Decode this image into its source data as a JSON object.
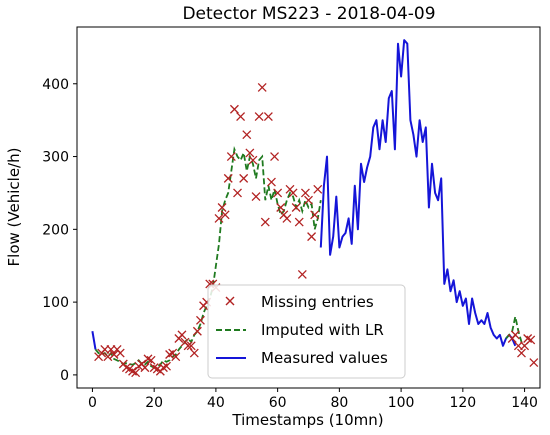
{
  "chart_data": {
    "type": "line",
    "title": "Detector MS223 - 2018-04-09",
    "xlabel": "Timestamps (10mn)",
    "ylabel": "Flow (Vehicle/h)",
    "xlim": [
      -5,
      145
    ],
    "ylim": [
      -18,
      478
    ],
    "xticks": [
      0,
      20,
      40,
      60,
      80,
      100,
      120,
      140
    ],
    "yticks": [
      0,
      100,
      200,
      300,
      400
    ],
    "legend_position": "lower-center",
    "colors": {
      "missing": "#b22222",
      "imputed": "#1f7a1f",
      "measured": "#1515d8"
    },
    "series": [
      {
        "name": "Missing entries",
        "kind": "scatter",
        "marker": "x",
        "points": [
          [
            2,
            25
          ],
          [
            3,
            30
          ],
          [
            4,
            35
          ],
          [
            5,
            25
          ],
          [
            6,
            35
          ],
          [
            7,
            28
          ],
          [
            8,
            35
          ],
          [
            9,
            30
          ],
          [
            10,
            15
          ],
          [
            11,
            10
          ],
          [
            12,
            8
          ],
          [
            13,
            5
          ],
          [
            14,
            3
          ],
          [
            15,
            12
          ],
          [
            16,
            15
          ],
          [
            17,
            10
          ],
          [
            18,
            22
          ],
          [
            19,
            20
          ],
          [
            20,
            10
          ],
          [
            21,
            8
          ],
          [
            22,
            5
          ],
          [
            23,
            10
          ],
          [
            24,
            12
          ],
          [
            25,
            28
          ],
          [
            26,
            30
          ],
          [
            27,
            25
          ],
          [
            28,
            50
          ],
          [
            29,
            55
          ],
          [
            30,
            45
          ],
          [
            31,
            40
          ],
          [
            32,
            40
          ],
          [
            33,
            30
          ],
          [
            34,
            60
          ],
          [
            35,
            75
          ],
          [
            36,
            95
          ],
          [
            37,
            100
          ],
          [
            38,
            125
          ],
          [
            39,
            125
          ],
          [
            40,
            120
          ],
          [
            41,
            215
          ],
          [
            42,
            230
          ],
          [
            43,
            220
          ],
          [
            44,
            270
          ],
          [
            45,
            300
          ],
          [
            46,
            365
          ],
          [
            47,
            250
          ],
          [
            48,
            355
          ],
          [
            49,
            270
          ],
          [
            50,
            330
          ],
          [
            51,
            305
          ],
          [
            52,
            295
          ],
          [
            53,
            245
          ],
          [
            54,
            355
          ],
          [
            55,
            395
          ],
          [
            56,
            210
          ],
          [
            57,
            355
          ],
          [
            58,
            265
          ],
          [
            59,
            300
          ],
          [
            60,
            250
          ],
          [
            61,
            230
          ],
          [
            62,
            220
          ],
          [
            63,
            215
          ],
          [
            64,
            255
          ],
          [
            65,
            250
          ],
          [
            66,
            230
          ],
          [
            67,
            210
          ],
          [
            68,
            138
          ],
          [
            69,
            250
          ],
          [
            70,
            240
          ],
          [
            71,
            190
          ],
          [
            72,
            220
          ],
          [
            73,
            255
          ],
          [
            136,
            50
          ],
          [
            137,
            55
          ],
          [
            138,
            40
          ],
          [
            139,
            30
          ],
          [
            140,
            40
          ],
          [
            141,
            50
          ],
          [
            142,
            48
          ],
          [
            143,
            17
          ]
        ]
      },
      {
        "name": "Imputed with LR",
        "kind": "line",
        "style": "dashed",
        "x": [
          1,
          2,
          3,
          4,
          5,
          6,
          7,
          8,
          9,
          10,
          11,
          12,
          13,
          14,
          15,
          16,
          17,
          18,
          19,
          20,
          21,
          22,
          23,
          24,
          25,
          26,
          27,
          28,
          29,
          30,
          31,
          32,
          33,
          34,
          35,
          36,
          37,
          38,
          39,
          40,
          41,
          42,
          43,
          44,
          45,
          46,
          47,
          48,
          49,
          50,
          51,
          52,
          53,
          54,
          55,
          56,
          57,
          58,
          59,
          60,
          61,
          62,
          63,
          64,
          65,
          66,
          67,
          68,
          69,
          70,
          71,
          72,
          73,
          74
        ],
        "y": [
          35,
          30,
          28,
          30,
          25,
          30,
          22,
          20,
          18,
          15,
          16,
          15,
          14,
          16,
          20,
          15,
          14,
          18,
          12,
          10,
          12,
          14,
          20,
          18,
          20,
          25,
          28,
          35,
          40,
          45,
          50,
          45,
          55,
          60,
          70,
          85,
          95,
          105,
          120,
          150,
          180,
          225,
          240,
          250,
          280,
          310,
          300,
          295,
          305,
          280,
          300,
          290,
          270,
          295,
          300,
          240,
          260,
          240,
          255,
          235,
          220,
          225,
          240,
          250,
          245,
          230,
          240,
          225,
          240,
          230,
          235,
          200,
          215,
          240
        ]
      },
      {
        "name": "Measured values",
        "kind": "line",
        "style": "solid",
        "x": [
          0,
          1,
          74,
          75,
          76,
          77,
          78,
          79,
          80,
          81,
          82,
          83,
          84,
          85,
          86,
          87,
          88,
          89,
          90,
          91,
          92,
          93,
          94,
          95,
          96,
          97,
          98,
          99,
          100,
          101,
          102,
          103,
          104,
          105,
          106,
          107,
          108,
          109,
          110,
          111,
          112,
          113,
          114,
          115,
          116,
          117,
          118,
          119,
          120,
          121,
          122,
          123,
          124,
          125,
          126,
          127,
          128,
          129,
          130,
          131,
          132,
          133,
          134,
          135,
          136,
          137
        ],
        "y": [
          60,
          35,
          175,
          260,
          300,
          165,
          190,
          245,
          175,
          190,
          195,
          215,
          180,
          260,
          200,
          290,
          265,
          285,
          300,
          340,
          350,
          310,
          350,
          320,
          380,
          390,
          310,
          455,
          410,
          460,
          455,
          350,
          330,
          300,
          350,
          320,
          340,
          230,
          290,
          250,
          240,
          270,
          125,
          145,
          115,
          130,
          100,
          115,
          95,
          105,
          70,
          105,
          85,
          70,
          75,
          70,
          85,
          65,
          55,
          50,
          55,
          40,
          50,
          55,
          50,
          40
        ]
      }
    ]
  }
}
